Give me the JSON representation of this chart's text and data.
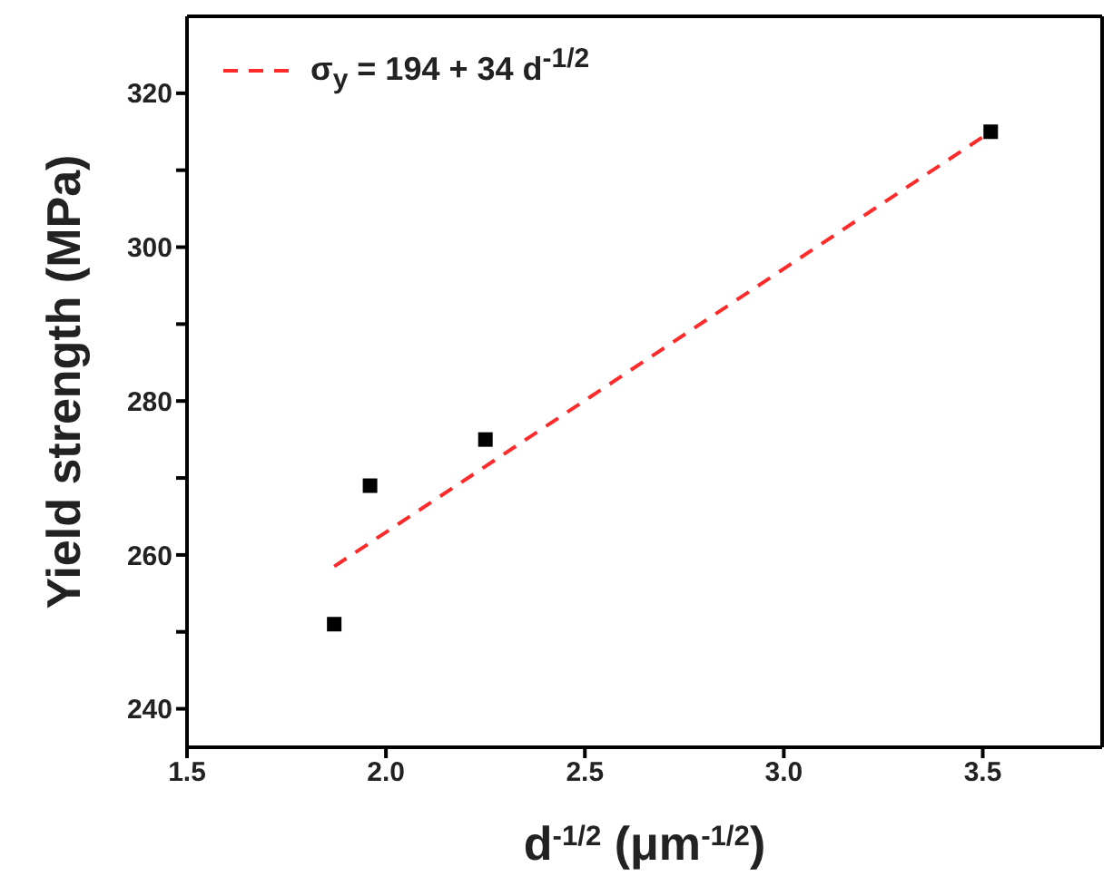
{
  "chart_data": {
    "type": "scatter",
    "xlabel": "d$^{-1/2}$ (μm$^{-1/2}$)",
    "ylabel": "Yield strength (MPa)",
    "xlim": [
      1.5,
      3.8
    ],
    "xticks": [
      {
        "value": 1.5,
        "label": "1.5"
      },
      {
        "value": 2,
        "label": "2.0"
      },
      {
        "value": 2.5,
        "label": "2.5"
      },
      {
        "value": 3,
        "label": "3.0"
      },
      {
        "value": 3.5,
        "label": "3.5"
      }
    ],
    "ylim": [
      235,
      330
    ],
    "yticks": [
      240,
      {
        "value": 250,
        "label": null
      },
      260,
      {
        "value": 270,
        "label": null
      },
      280,
      {
        "value": 290,
        "label": null
      },
      300,
      {
        "value": 310,
        "label": null
      },
      320
    ],
    "legend": "top left",
    "marker": "square",
    "series": [
      {
        "color": "#000000",
        "x": [
          1.87,
          1.96,
          2.25,
          3.52
        ],
        "values": [
          251,
          269,
          275,
          315
        ]
      },
      {
        "type": "line",
        "name": "σ$_{y}$ = 194 + 34 d$^{-1/2}$",
        "color": "#ff2a2a",
        "x": [
          1.87,
          3.52
        ],
        "values": [
          258.5,
          315
        ],
        "line_style": "dashed",
        "marker": "none"
      }
    ]
  }
}
